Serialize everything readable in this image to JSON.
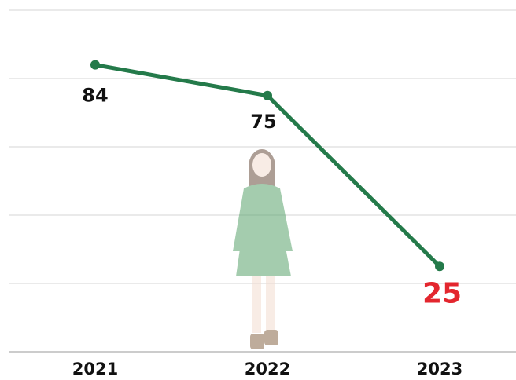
{
  "chart_data": {
    "type": "line",
    "categories": [
      "2021",
      "2022",
      "2023"
    ],
    "series": [
      {
        "name": null,
        "color": "#247a4a",
        "values": [
          84,
          75,
          25
        ]
      }
    ],
    "value_label_colors": [
      "#111111",
      "#111111",
      "#e3262e"
    ],
    "ylim": [
      0,
      100
    ],
    "yticks": [
      0,
      20,
      40,
      60,
      80,
      100
    ],
    "grid": true
  }
}
